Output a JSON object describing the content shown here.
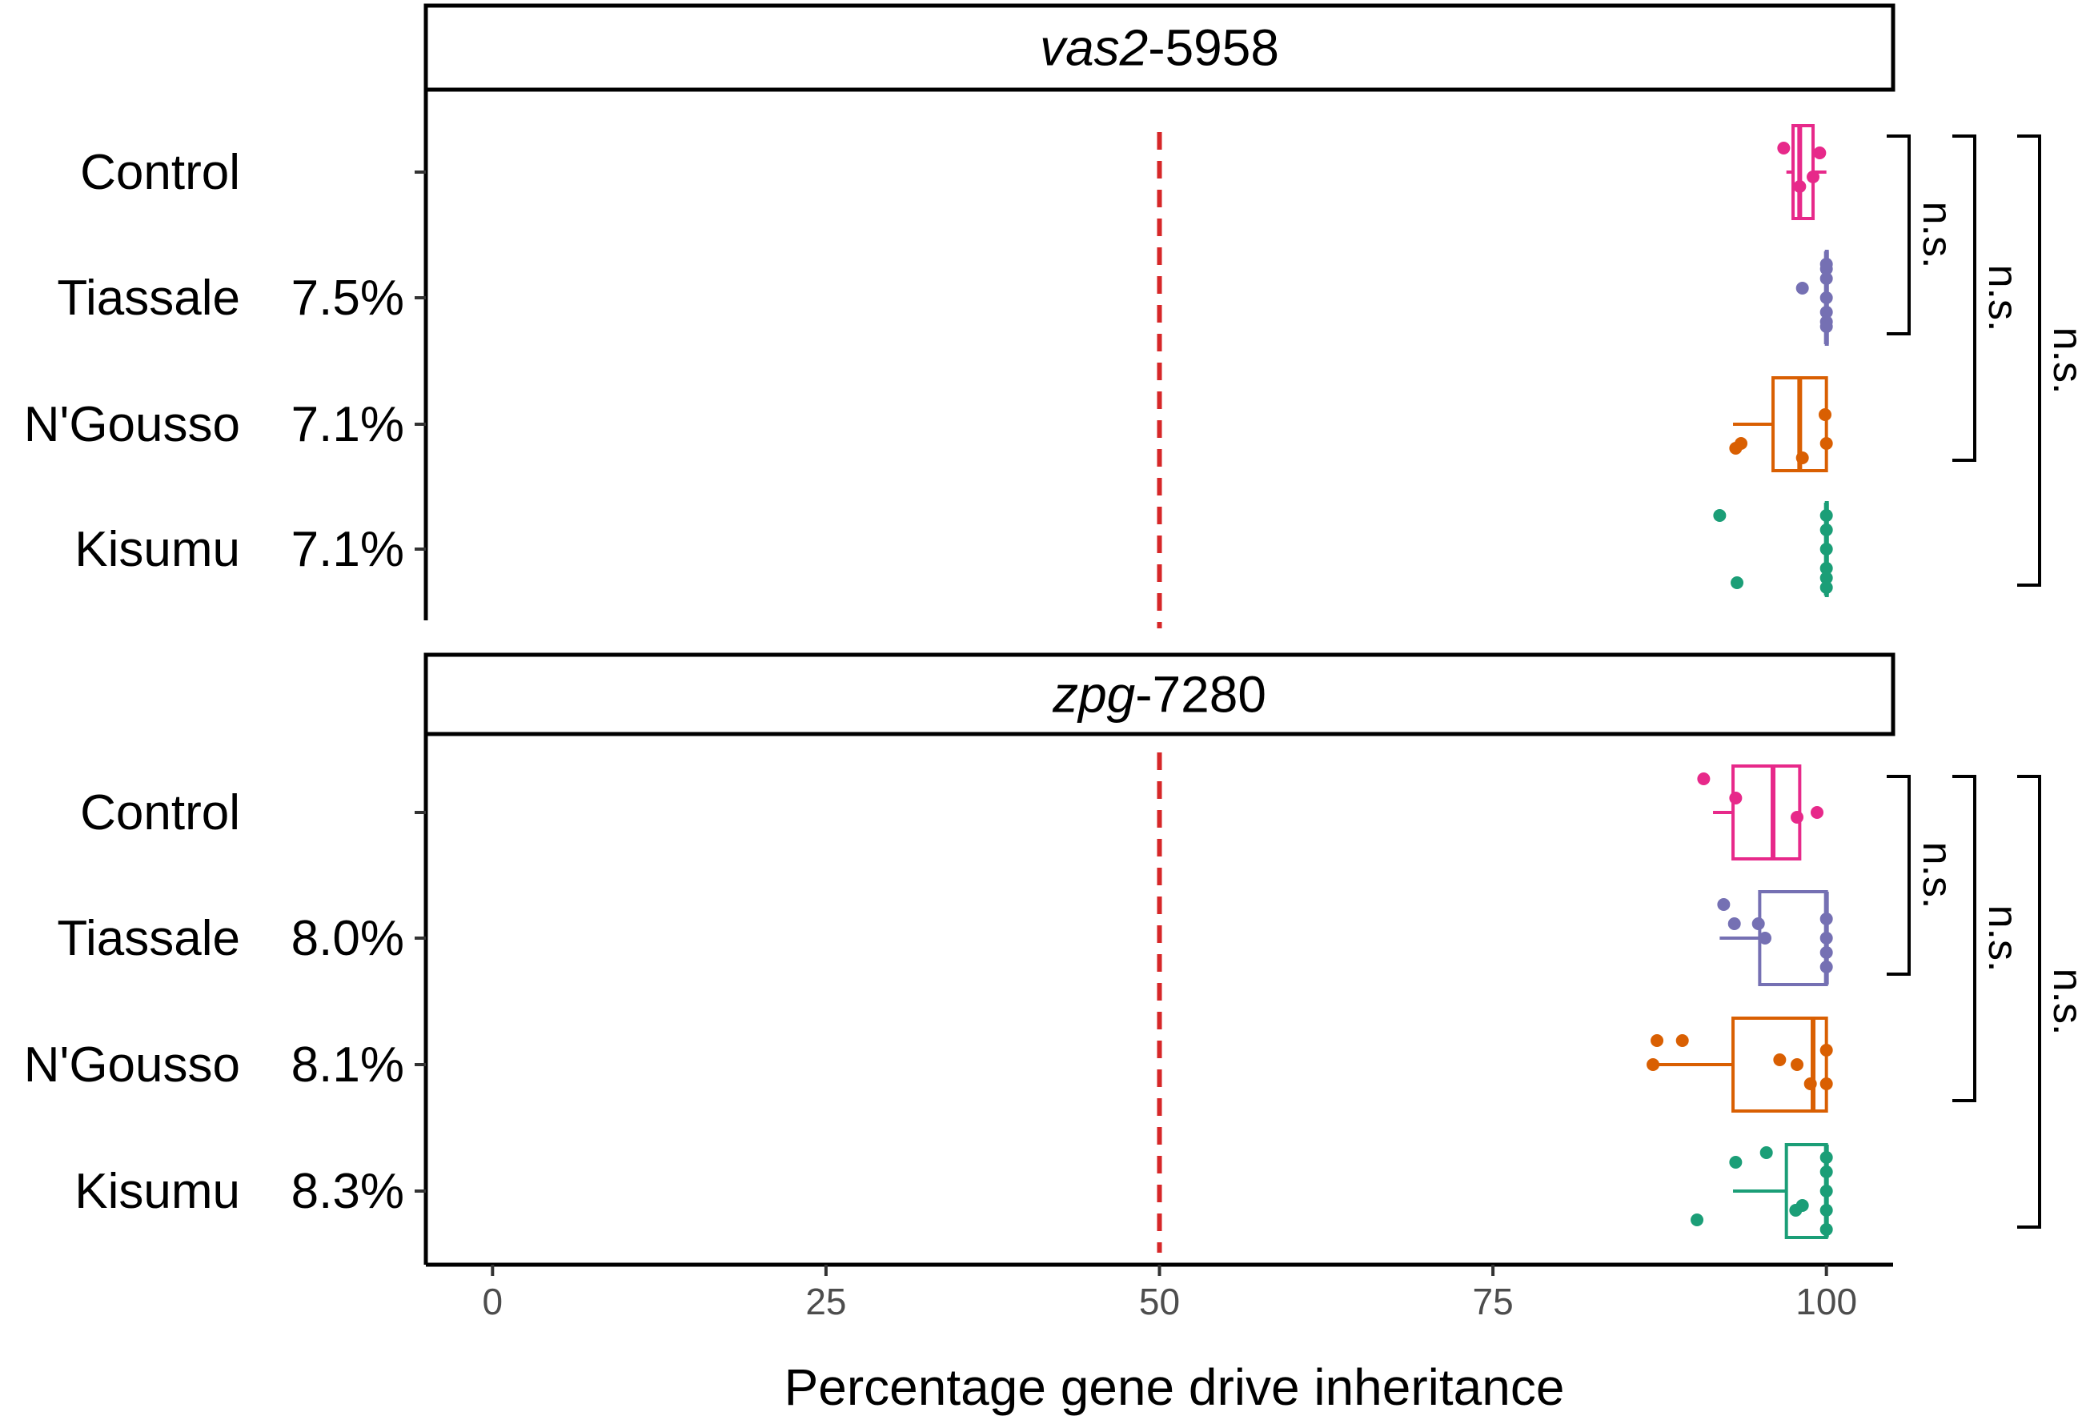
{
  "chart_data": {
    "type": "boxplot",
    "xlabel": "Percentage gene drive inheritance",
    "xlim": [
      -5,
      105
    ],
    "xticks": [
      0,
      25,
      50,
      75,
      100
    ],
    "reference_line": {
      "x": 50,
      "color": "#d62728",
      "style": "dashed"
    },
    "categories": [
      "Control",
      "Tiassale",
      "N'Gousso",
      "Kisumu"
    ],
    "colors": {
      "Control": "#e7298a",
      "Tiassale": "#7570b3",
      "N'Gousso": "#d95f02",
      "Kisumu": "#1b9e77"
    },
    "panels": [
      {
        "title_italic": "vas2",
        "title_rest": "-5958",
        "groups": [
          {
            "name": "Control",
            "label": "",
            "box": {
              "min": 97,
              "q1": 97.5,
              "median": 98,
              "q3": 99,
              "max": 100
            },
            "points": [
              [
                96.8,
                -0.25
              ],
              [
                99.5,
                -0.2
              ],
              [
                98,
                0.15
              ],
              [
                99,
                0.05
              ]
            ]
          },
          {
            "name": "Tiassale",
            "label": "7.5%",
            "box": {
              "min": 100,
              "q1": 100,
              "median": 100,
              "q3": 100,
              "max": 100
            },
            "points": [
              [
                98.2,
                -0.1
              ],
              [
                100,
                -0.3
              ],
              [
                100,
                -0.2
              ],
              [
                100,
                0.0
              ],
              [
                100,
                0.15
              ],
              [
                100,
                0.3
              ],
              [
                100,
                -0.35
              ],
              [
                100,
                0.25
              ]
            ]
          },
          {
            "name": "N'Gousso",
            "label": "7.1%",
            "box": {
              "min": 93,
              "q1": 96,
              "median": 98,
              "q3": 100,
              "max": 100
            },
            "points": [
              [
                93.2,
                0.25
              ],
              [
                93.6,
                0.2
              ],
              [
                98.2,
                0.35
              ],
              [
                100,
                0.2
              ],
              [
                99.9,
                -0.1
              ]
            ]
          },
          {
            "name": "Kisumu",
            "label": "7.1%",
            "box": {
              "min": 100,
              "q1": 100,
              "median": 100,
              "q3": 100,
              "max": 100
            },
            "points": [
              [
                92,
                -0.35
              ],
              [
                93.3,
                0.35
              ],
              [
                100,
                0.4
              ],
              [
                100,
                0.2
              ],
              [
                100,
                0.0
              ],
              [
                100,
                -0.2
              ],
              [
                100,
                -0.35
              ],
              [
                100,
                0.3
              ]
            ]
          }
        ],
        "significance": [
          {
            "from": "Control",
            "to": "Tiassale",
            "text": "n.s."
          },
          {
            "from": "Control",
            "to": "N'Gousso",
            "text": "n.s."
          },
          {
            "from": "Control",
            "to": "Kisumu",
            "text": "n.s."
          }
        ]
      },
      {
        "title_italic": "zpg",
        "title_rest": "-7280",
        "groups": [
          {
            "name": "Control",
            "label": "",
            "box": {
              "min": 91.5,
              "q1": 93,
              "median": 96,
              "q3": 98,
              "max": 98
            },
            "points": [
              [
                90.8,
                -0.35
              ],
              [
                93.2,
                -0.15
              ],
              [
                97.8,
                0.05
              ],
              [
                99.3,
                0.0
              ]
            ]
          },
          {
            "name": "Tiassale",
            "label": "8.0%",
            "box": {
              "min": 92,
              "q1": 95,
              "median": 100,
              "q3": 100,
              "max": 100
            },
            "points": [
              [
                92.3,
                -0.35
              ],
              [
                93.1,
                -0.15
              ],
              [
                94.9,
                -0.15
              ],
              [
                95.4,
                0.0
              ],
              [
                100,
                0.3
              ],
              [
                100,
                0.0
              ],
              [
                100,
                -0.2
              ],
              [
                100,
                0.15
              ]
            ]
          },
          {
            "name": "N'Gousso",
            "label": "8.1%",
            "box": {
              "min": 87,
              "q1": 93,
              "median": 99,
              "q3": 100,
              "max": 100
            },
            "points": [
              [
                87,
                0.0
              ],
              [
                87.3,
                -0.25
              ],
              [
                89.2,
                -0.25
              ],
              [
                96.5,
                -0.05
              ],
              [
                97.8,
                0.0
              ],
              [
                98.8,
                0.2
              ],
              [
                100,
                0.2
              ],
              [
                100,
                -0.15
              ]
            ]
          },
          {
            "name": "Kisumu",
            "label": "8.3%",
            "box": {
              "min": 93,
              "q1": 97,
              "median": 100,
              "q3": 100,
              "max": 100
            },
            "points": [
              [
                90.3,
                0.3
              ],
              [
                93.2,
                -0.3
              ],
              [
                95.5,
                -0.4
              ],
              [
                97.7,
                0.2
              ],
              [
                98.2,
                0.15
              ],
              [
                100,
                0.4
              ],
              [
                100,
                0.2
              ],
              [
                100,
                0.0
              ],
              [
                100,
                -0.2
              ],
              [
                100,
                -0.35
              ]
            ]
          }
        ],
        "significance": [
          {
            "from": "Control",
            "to": "Tiassale",
            "text": "n.s."
          },
          {
            "from": "Control",
            "to": "N'Gousso",
            "text": "n.s."
          },
          {
            "from": "Control",
            "to": "Kisumu",
            "text": "n.s."
          }
        ]
      }
    ]
  }
}
